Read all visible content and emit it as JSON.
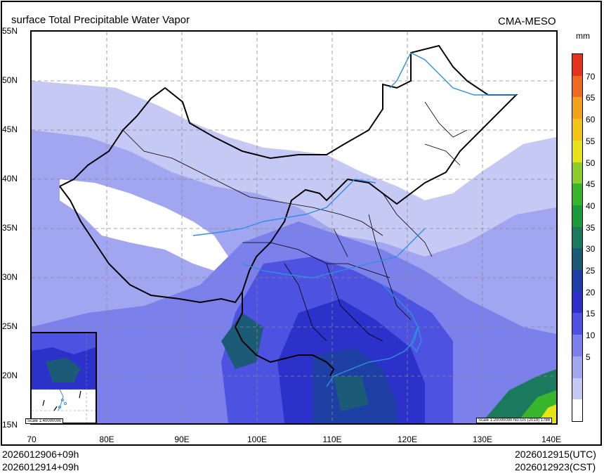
{
  "header": {
    "title": "surface Total Precipitable Water Vapor",
    "organization": "CMA-MESO"
  },
  "map": {
    "lat_ticks": [
      "55N",
      "50N",
      "45N",
      "40N",
      "35N",
      "30N",
      "25N",
      "20N",
      "15N"
    ],
    "lon_ticks": [
      "70",
      "80E",
      "90E",
      "100E",
      "110E",
      "120E",
      "130E",
      "140E"
    ],
    "scale_note": "Scale 1:20000000 No:GS (2019) 1786",
    "inset_scale_note": "Scale 1:40000000"
  },
  "legend": {
    "unit": "mm",
    "labels": [
      "70",
      "65",
      "60",
      "55",
      "50",
      "45",
      "40",
      "35",
      "30",
      "25",
      "20",
      "15",
      "10",
      "5"
    ],
    "colors": [
      "#ffffff",
      "#c7c9f5",
      "#a2a6f0",
      "#7b80ea",
      "#4d53e0",
      "#2b31c9",
      "#1e3fa3",
      "#1c5b78",
      "#1b7a5e",
      "#1d9b3c",
      "#38b52a",
      "#8ccd2c",
      "#e6e319",
      "#f3c418",
      "#f2a11a",
      "#ee6a1f",
      "#e5331f"
    ]
  },
  "footer": {
    "init_utc": "2026012906+09h",
    "init_cst": "2026012914+09h",
    "valid_utc": "2026012915(UTC)",
    "valid_cst": "2026012923(CST)"
  }
}
